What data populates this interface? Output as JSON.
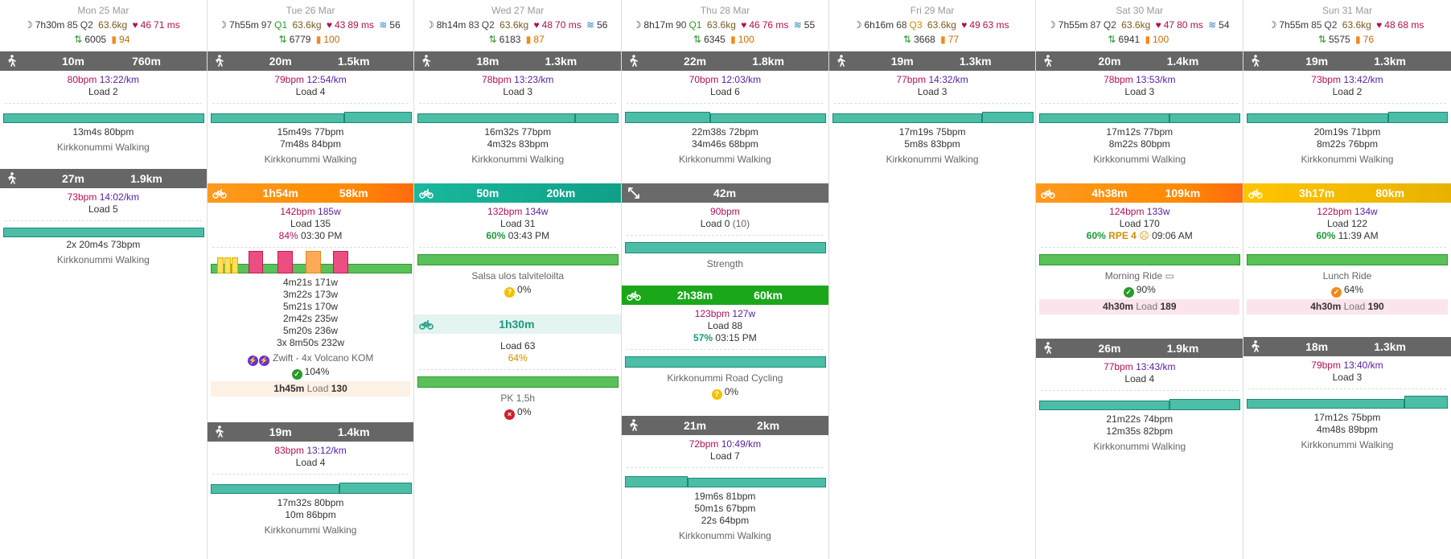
{
  "days": [
    {
      "name": "Mon 25 Mar",
      "sleep": "7h30m",
      "sleep_score": "85",
      "quality": "Q2",
      "weight": "63.6kg",
      "rhr": "46",
      "hrv": "71 ms",
      "stress": "",
      "steps": "6005",
      "kcal": "94",
      "activities": [
        {
          "kind": "walk",
          "v1": "10m",
          "v2": "760m",
          "hr": "80bpm",
          "pace": "13:22/km",
          "load": "Load 2",
          "laps": [
            "13m4s 80bpm"
          ],
          "title": "Kirkkonummi Walking"
        },
        {
          "kind": "walk",
          "v1": "27m",
          "v2": "1.9km",
          "hr": "73bpm",
          "pace": "14:02/km",
          "load": "Load 5",
          "laps": [
            "2x 20m4s 73bpm"
          ],
          "title": "Kirkkonummi Walking"
        }
      ]
    },
    {
      "name": "Tue 26 Mar",
      "sleep": "7h55m",
      "sleep_score": "97",
      "quality": "Q1",
      "weight": "63.6kg",
      "rhr": "43",
      "hrv": "89 ms",
      "stress": "56",
      "steps": "6779",
      "kcal": "100",
      "activities": [
        {
          "kind": "walk",
          "v1": "20m",
          "v2": "1.5km",
          "hr": "79bpm",
          "pace": "12:54/km",
          "load": "Load 4",
          "laps": [
            "15m49s 77bpm",
            "7m48s 84bpm"
          ],
          "title": "Kirkkonummi Walking"
        },
        {
          "kind": "ride",
          "v1": "1h54m",
          "v2": "58km",
          "hr": "142bpm",
          "watts": "185w",
          "load": "Load 135",
          "pct": "84%",
          "time": "03:30 PM",
          "laps": [
            "4m21s 171w",
            "3m22s 173w",
            "5m21s 170w",
            "2m42s 235w",
            "5m20s 236w",
            "3x 8m50s 232w"
          ],
          "title": "Zwift - 4x Volcano KOM",
          "compliance": "104%",
          "planned_time": "1h45m",
          "planned_load_label": "Load",
          "planned_load": "130"
        },
        {
          "kind": "walk",
          "v1": "19m",
          "v2": "1.4km",
          "hr": "83bpm",
          "pace": "13:12/km",
          "load": "Load 4",
          "laps": [
            "17m32s 80bpm",
            "10m 86bpm"
          ],
          "title": "Kirkkonummi Walking"
        }
      ]
    },
    {
      "name": "Wed 27 Mar",
      "sleep": "8h14m",
      "sleep_score": "83",
      "quality": "Q2",
      "weight": "63.6kg",
      "rhr": "48",
      "hrv": "70 ms",
      "stress": "56",
      "steps": "6183",
      "kcal": "87",
      "activities": [
        {
          "kind": "walk",
          "v1": "18m",
          "v2": "1.3km",
          "hr": "78bpm",
          "pace": "13:23/km",
          "load": "Load 3",
          "laps": [
            "16m32s 77bpm",
            "4m32s 83bpm"
          ],
          "title": "Kirkkonummi Walking"
        },
        {
          "kind": "ride",
          "v1": "50m",
          "v2": "20km",
          "hr": "132bpm",
          "watts": "134w",
          "load": "Load 31",
          "pct": "60%",
          "time": "03:43 PM",
          "title": "Salsa ulos talviteloilta",
          "compliance": "0%"
        },
        {
          "kind": "planned",
          "v1": "1h30m",
          "load": "Load 63",
          "pct": "64%",
          "title": "PK 1,5h",
          "compliance": "0%"
        }
      ]
    },
    {
      "name": "Thu 28 Mar",
      "sleep": "8h17m",
      "sleep_score": "90",
      "quality": "Q1",
      "weight": "63.6kg",
      "rhr": "46",
      "hrv": "76 ms",
      "stress": "55",
      "steps": "6345",
      "kcal": "100",
      "activities": [
        {
          "kind": "walk",
          "v1": "22m",
          "v2": "1.8km",
          "hr": "70bpm",
          "pace": "12:03/km",
          "load": "Load 6",
          "laps": [
            "22m38s 72bpm",
            "34m46s 68bpm"
          ],
          "title": "Kirkkonummi Walking"
        },
        {
          "kind": "strength",
          "v1": "42m",
          "hr": "90bpm",
          "load": "Load 0",
          "load_extra": "(10)",
          "title": "Strength"
        },
        {
          "kind": "ride",
          "v1": "2h38m",
          "v2": "60km",
          "hr": "123bpm",
          "watts": "127w",
          "load": "Load 88",
          "pct": "57%",
          "time": "03:15 PM",
          "title": "Kirkkonummi Road Cycling",
          "compliance": "0%"
        },
        {
          "kind": "walk",
          "v1": "21m",
          "v2": "2km",
          "hr": "72bpm",
          "pace": "10:49/km",
          "load": "Load 7",
          "laps": [
            "19m6s 81bpm",
            "50m1s 67bpm",
            "22s 64bpm"
          ],
          "title": "Kirkkonummi Walking"
        }
      ]
    },
    {
      "name": "Fri 29 Mar",
      "sleep": "6h16m",
      "sleep_score": "68",
      "quality": "Q3",
      "weight": "63.6kg",
      "rhr": "49",
      "hrv": "63 ms",
      "stress": "",
      "steps": "3668",
      "kcal": "77",
      "activities": [
        {
          "kind": "walk",
          "v1": "19m",
          "v2": "1.3km",
          "hr": "77bpm",
          "pace": "14:32/km",
          "load": "Load 3",
          "laps": [
            "17m19s 75bpm",
            "5m8s 83bpm"
          ],
          "title": "Kirkkonummi Walking"
        }
      ]
    },
    {
      "name": "Sat 30 Mar",
      "sleep": "7h55m",
      "sleep_score": "87",
      "quality": "Q2",
      "weight": "63.6kg",
      "rhr": "47",
      "hrv": "80 ms",
      "stress": "54",
      "steps": "6941",
      "kcal": "100",
      "activities": [
        {
          "kind": "walk",
          "v1": "20m",
          "v2": "1.4km",
          "hr": "78bpm",
          "pace": "13:53/km",
          "load": "Load 3",
          "laps": [
            "17m12s 77bpm",
            "8m22s 80bpm"
          ],
          "title": "Kirkkonummi Walking"
        },
        {
          "kind": "ride",
          "v1": "4h38m",
          "v2": "109km",
          "hr": "124bpm",
          "watts": "133w",
          "load": "Load 170",
          "pct": "60%",
          "rpe": "RPE 4",
          "time": "09:06 AM",
          "title": "Morning Ride",
          "compliance": "90%",
          "planned_time": "4h30m",
          "planned_load_label": "Load",
          "planned_load": "189"
        },
        {
          "kind": "walk",
          "v1": "26m",
          "v2": "1.9km",
          "hr": "77bpm",
          "pace": "13:43/km",
          "load": "Load 4",
          "laps": [
            "21m22s 74bpm",
            "12m35s 82bpm"
          ],
          "title": "Kirkkonummi Walking"
        }
      ]
    },
    {
      "name": "Sun 31 Mar",
      "sleep": "7h55m",
      "sleep_score": "85",
      "quality": "Q2",
      "weight": "63.6kg",
      "rhr": "48",
      "hrv": "68 ms",
      "stress": "",
      "steps": "5575",
      "kcal": "76",
      "activities": [
        {
          "kind": "walk",
          "v1": "19m",
          "v2": "1.3km",
          "hr": "73bpm",
          "pace": "13:42/km",
          "load": "Load 2",
          "laps": [
            "20m19s 71bpm",
            "8m22s 76bpm"
          ],
          "title": "Kirkkonummi Walking"
        },
        {
          "kind": "ride",
          "v1": "3h17m",
          "v2": "80km",
          "hr": "122bpm",
          "watts": "134w",
          "load": "Load 122",
          "pct": "60%",
          "time": "11:39 AM",
          "title": "Lunch Ride",
          "compliance": "64%",
          "planned_time": "4h30m",
          "planned_load_label": "Load",
          "planned_load": "190"
        },
        {
          "kind": "walk",
          "v1": "18m",
          "v2": "1.3km",
          "hr": "79bpm",
          "pace": "13:40/km",
          "load": "Load 3",
          "laps": [
            "17m12s 75bpm",
            "4m48s 89bpm"
          ],
          "title": "Kirkkonummi Walking"
        }
      ]
    }
  ]
}
